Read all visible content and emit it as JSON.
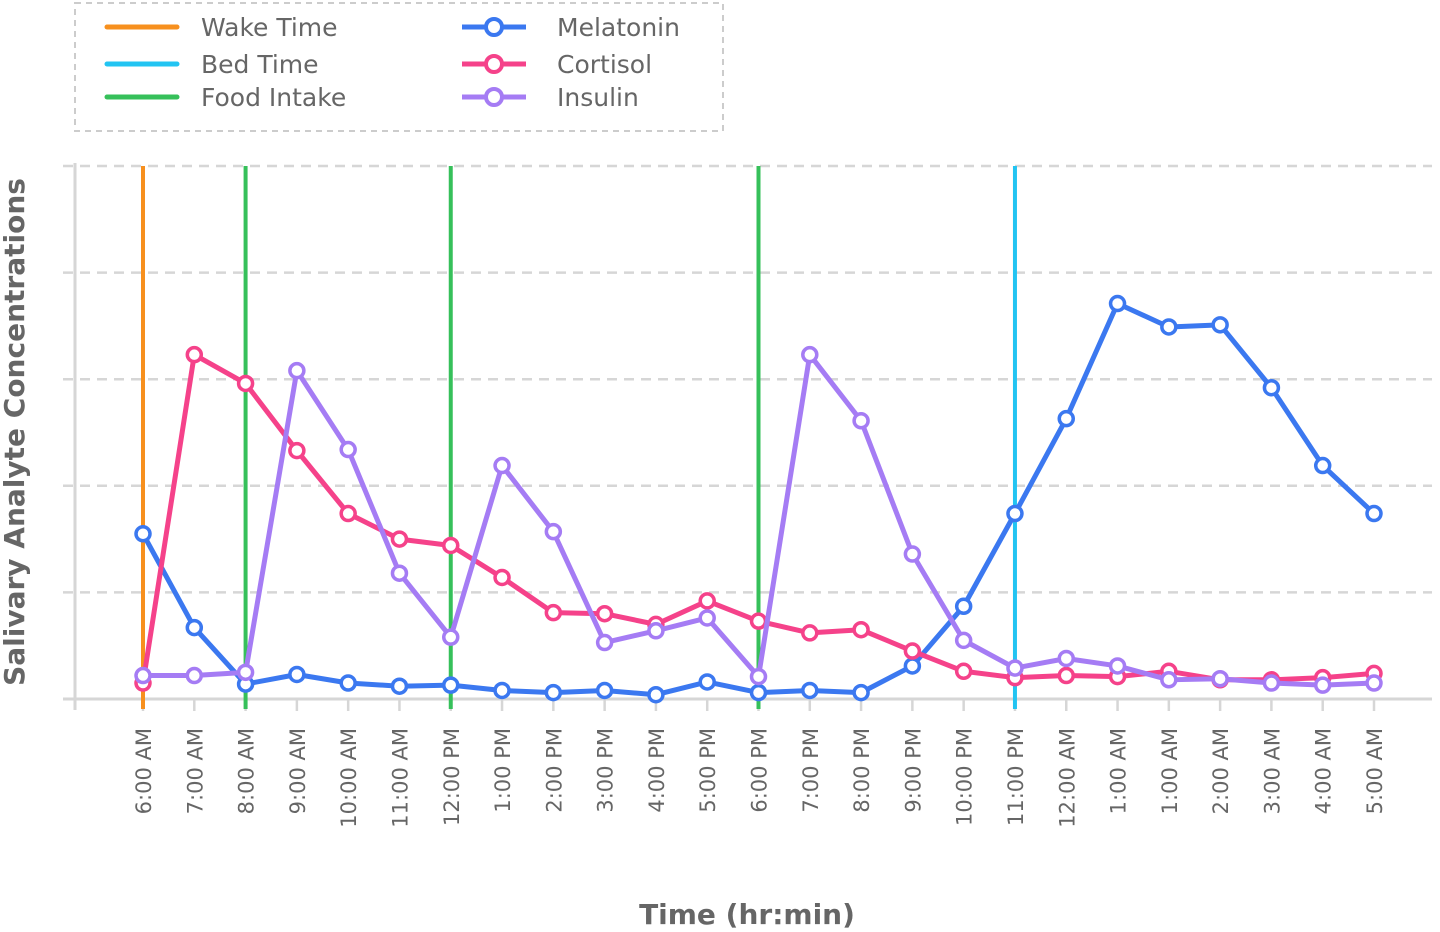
{
  "chart_data": {
    "type": "line",
    "title": "",
    "xlabel": "Time (hr:min)",
    "ylabel": "Salivary Analyte Concentrations",
    "ylim": [
      0,
      5
    ],
    "grid": true,
    "legend_position": "top-left",
    "categories": [
      "6:00 AM",
      "7:00 AM",
      "8:00 AM",
      "9:00 AM",
      "10:00 AM",
      "11:00 AM",
      "12:00 PM",
      "1:00 PM",
      "2:00 PM",
      "3:00 PM",
      "4:00 PM",
      "5:00 PM",
      "6:00 PM",
      "7:00 PM",
      "8:00 PM",
      "9:00 PM",
      "10:00 PM",
      "11:00 PM",
      "12:00 AM",
      "1:00 AM",
      "1:00 AM",
      "2:00 AM",
      "3:00 AM",
      "4:00 AM",
      "5:00 AM"
    ],
    "series": [
      {
        "name": "Melatonin",
        "color": "#3b78f0",
        "values": [
          1.55,
          0.67,
          0.14,
          0.23,
          0.15,
          0.12,
          0.13,
          0.08,
          0.06,
          0.08,
          0.04,
          0.16,
          0.06,
          0.08,
          0.06,
          0.31,
          0.87,
          1.74,
          2.63,
          3.71,
          3.49,
          3.51,
          2.92,
          2.19,
          1.74
        ]
      },
      {
        "name": "Cortisol",
        "color": "#f5428a",
        "values": [
          0.15,
          3.23,
          2.96,
          2.33,
          1.74,
          1.5,
          1.44,
          1.14,
          0.81,
          0.8,
          0.7,
          0.92,
          0.73,
          0.62,
          0.65,
          0.45,
          0.26,
          0.2,
          0.22,
          0.21,
          0.26,
          0.18,
          0.18,
          0.2,
          0.24
        ]
      },
      {
        "name": "Insulin",
        "color": "#a57cf4",
        "values": [
          0.22,
          0.22,
          0.25,
          3.08,
          2.34,
          1.18,
          0.58,
          2.19,
          1.57,
          0.53,
          0.64,
          0.76,
          0.21,
          3.23,
          2.61,
          1.36,
          0.55,
          0.29,
          0.38,
          0.31,
          0.18,
          0.19,
          0.15,
          0.13,
          0.15
        ]
      }
    ],
    "markers": [
      {
        "name": "Wake Time",
        "color": "#f7901e",
        "at": [
          0
        ]
      },
      {
        "name": "Bed Time",
        "color": "#22c4f2",
        "at": [
          17
        ]
      },
      {
        "name": "Food Intake",
        "color": "#36c05a",
        "at": [
          2,
          6,
          12
        ]
      }
    ]
  }
}
